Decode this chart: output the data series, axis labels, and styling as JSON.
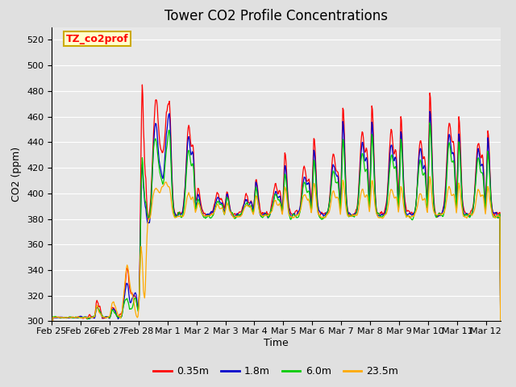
{
  "title": "Tower CO2 Profile Concentrations",
  "xlabel": "Time",
  "ylabel": "CO2 (ppm)",
  "ylim": [
    300,
    530
  ],
  "yticks": [
    300,
    320,
    340,
    360,
    380,
    400,
    420,
    440,
    460,
    480,
    500,
    520
  ],
  "series_labels": [
    "0.35m",
    "1.8m",
    "6.0m",
    "23.5m"
  ],
  "series_colors": [
    "#ff0000",
    "#0000cc",
    "#00cc00",
    "#ffaa00"
  ],
  "legend_label": "TZ_co2prof",
  "legend_box_color": "#ffffcc",
  "legend_box_edge": "#ccaa00",
  "plot_bg_color": "#e8e8e8",
  "fig_bg_color": "#e0e0e0",
  "grid_color": "#ffffff",
  "title_fontsize": 12,
  "label_fontsize": 9,
  "tick_fontsize": 8,
  "x_tick_positions": [
    0,
    1,
    2,
    3,
    4,
    5,
    6,
    7,
    8,
    9,
    10,
    11,
    12,
    13,
    14,
    15
  ],
  "x_tick_labels": [
    "Feb 25",
    "Feb 26",
    "Feb 27",
    "Feb 28",
    "Mar 1",
    "Mar 2",
    "Mar 3",
    "Mar 4",
    "Mar 5",
    "Mar 6",
    "Mar 7",
    "Mar 8",
    "Mar 9",
    "Mar 10",
    "Mar 11",
    "Mar 12"
  ]
}
